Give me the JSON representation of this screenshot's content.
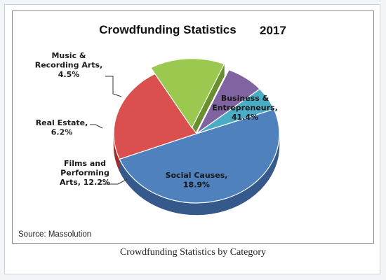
{
  "caption": "Crowdfunding Statistics by Category",
  "source": "Source: Massolution",
  "chart_data": {
    "type": "pie",
    "title": "Crowdfunding Statistics",
    "title_year": "2017",
    "style": "3d-exploded",
    "slices": [
      {
        "name": "Business & Entrepreneurs",
        "label_lines": [
          "Business &",
          "Entrepreneurs,",
          "41.4%"
        ],
        "value": 41.4,
        "color": "#4f81bd",
        "side": "#34598a",
        "exploded": false
      },
      {
        "name": "Social Causes",
        "label_lines": [
          "Social Causes,",
          "18.9%"
        ],
        "value": 18.9,
        "color": "#d9504e",
        "side": "#9c2f2d",
        "exploded": false
      },
      {
        "name": "Films and Performing Arts",
        "label_lines": [
          "Films and",
          "Performing",
          "Arts, 12.2%"
        ],
        "value": 12.2,
        "color": "#9bc94f",
        "side": "#6a8f2f",
        "exploded": true
      },
      {
        "name": "Real Estate",
        "label_lines": [
          "Real Estate,",
          "6.2%"
        ],
        "value": 6.2,
        "color": "#8064a2",
        "side": "#5a4476",
        "exploded": false
      },
      {
        "name": "Music & Recording Arts",
        "label_lines": [
          "Music &",
          "Recording Arts,",
          "4.5%"
        ],
        "value": 4.5,
        "color": "#4bacc6",
        "side": "#2f7f96",
        "exploded": false
      }
    ]
  }
}
